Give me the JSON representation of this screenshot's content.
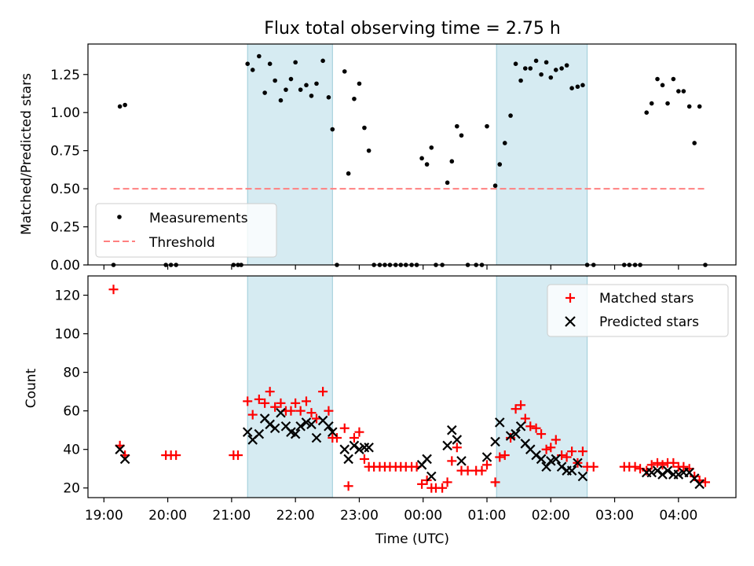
{
  "chart_data": [
    {
      "type": "scatter",
      "title": "Flux total observing time = 2.75 h",
      "xlabel": "",
      "ylabel": "Matched/Predicted stars",
      "xlim": [
        18.75,
        28.9
      ],
      "ylim": [
        0,
        1.45
      ],
      "yticks": [
        0.0,
        0.25,
        0.5,
        0.75,
        1.0,
        1.25
      ],
      "ytick_labels": [
        "0.00",
        "0.25",
        "0.50",
        "0.75",
        "1.00",
        "1.25"
      ],
      "shaded_regions": [
        [
          21.25,
          22.58
        ],
        [
          25.15,
          26.57
        ]
      ],
      "threshold": {
        "name": "Threshold",
        "value": 0.5,
        "x": [
          19.15,
          28.42
        ],
        "color": "#ff8080"
      },
      "legend": {
        "position": "lower-left",
        "entries": [
          "Measurements",
          "Threshold"
        ]
      },
      "series": [
        {
          "name": "Measurements",
          "color": "#000000",
          "x": [
            19.15,
            19.25,
            19.33,
            19.97,
            20.05,
            20.13,
            21.03,
            21.1,
            21.15,
            21.25,
            21.33,
            21.43,
            21.52,
            21.6,
            21.68,
            21.77,
            21.85,
            21.93,
            22.0,
            22.08,
            22.17,
            22.25,
            22.33,
            22.43,
            22.52,
            22.58,
            22.65,
            22.77,
            22.83,
            22.92,
            23.0,
            23.08,
            23.15,
            23.23,
            23.32,
            23.4,
            23.48,
            23.57,
            23.65,
            23.73,
            23.82,
            23.9,
            23.98,
            24.06,
            24.13,
            24.2,
            24.3,
            24.38,
            24.45,
            24.53,
            24.6,
            24.7,
            24.83,
            24.92,
            25.0,
            25.13,
            25.2,
            25.28,
            25.37,
            25.45,
            25.53,
            25.6,
            25.68,
            25.77,
            25.85,
            25.93,
            26.0,
            26.08,
            26.17,
            26.25,
            26.33,
            26.42,
            26.5,
            26.57,
            26.67,
            27.15,
            27.23,
            27.32,
            27.4,
            27.5,
            27.58,
            27.67,
            27.75,
            27.83,
            27.92,
            28.0,
            28.08,
            28.17,
            28.25,
            28.33,
            28.42
          ],
          "y": [
            0.0,
            1.04,
            1.05,
            0.0,
            0.0,
            0.0,
            0.0,
            0.0,
            0.0,
            1.32,
            1.28,
            1.37,
            1.13,
            1.32,
            1.21,
            1.08,
            1.15,
            1.22,
            1.33,
            1.15,
            1.18,
            1.11,
            1.19,
            1.34,
            1.1,
            0.89,
            0.0,
            1.27,
            0.6,
            1.09,
            1.19,
            0.9,
            0.75,
            0.0,
            0.0,
            0.0,
            0.0,
            0.0,
            0.0,
            0.0,
            0.0,
            0.0,
            0.7,
            0.66,
            0.77,
            0.0,
            0.0,
            0.54,
            0.68,
            0.91,
            0.85,
            0.0,
            0.0,
            0.0,
            0.91,
            0.52,
            0.66,
            0.8,
            0.98,
            1.32,
            1.21,
            1.29,
            1.29,
            1.34,
            1.25,
            1.33,
            1.23,
            1.28,
            1.29,
            1.31,
            1.16,
            1.17,
            1.18,
            0.0,
            0.0,
            0.0,
            0.0,
            0.0,
            0.0,
            1.0,
            1.06,
            1.22,
            1.18,
            1.06,
            1.22,
            1.14,
            1.14,
            1.04,
            0.8,
            1.04,
            0.0
          ]
        }
      ]
    },
    {
      "type": "scatter",
      "title": "",
      "xlabel": "Time (UTC)",
      "ylabel": "Count",
      "xlim": [
        18.75,
        28.9
      ],
      "ylim": [
        15,
        130
      ],
      "yticks": [
        20,
        40,
        60,
        80,
        100,
        120
      ],
      "ytick_labels": [
        "20",
        "40",
        "60",
        "80",
        "100",
        "120"
      ],
      "xticks": [
        19,
        20,
        21,
        22,
        23,
        24,
        25,
        26,
        27,
        28
      ],
      "xtick_labels": [
        "19:00",
        "20:00",
        "21:00",
        "22:00",
        "23:00",
        "00:00",
        "01:00",
        "02:00",
        "03:00",
        "04:00"
      ],
      "shaded_regions": [
        [
          21.25,
          22.58
        ],
        [
          25.15,
          26.57
        ]
      ],
      "legend": {
        "position": "top-right",
        "entries": [
          "Matched stars",
          "Predicted stars"
        ]
      },
      "series": [
        {
          "name": "Matched stars",
          "color": "#ff0000",
          "marker": "plus",
          "x": [
            19.15,
            19.25,
            19.33,
            19.97,
            20.05,
            20.13,
            21.03,
            21.1,
            21.25,
            21.33,
            21.43,
            21.52,
            21.6,
            21.68,
            21.77,
            21.85,
            21.93,
            22.0,
            22.08,
            22.17,
            22.25,
            22.33,
            22.43,
            22.52,
            22.58,
            22.65,
            22.77,
            22.83,
            22.92,
            23.0,
            23.08,
            23.15,
            23.23,
            23.32,
            23.4,
            23.48,
            23.57,
            23.65,
            23.73,
            23.82,
            23.9,
            23.98,
            24.06,
            24.13,
            24.2,
            24.3,
            24.38,
            24.45,
            24.53,
            24.6,
            24.7,
            24.83,
            24.92,
            25.0,
            25.13,
            25.2,
            25.28,
            25.37,
            25.45,
            25.53,
            25.6,
            25.68,
            25.77,
            25.85,
            25.93,
            26.0,
            26.08,
            26.17,
            26.25,
            26.33,
            26.42,
            26.5,
            26.57,
            26.67,
            27.15,
            27.23,
            27.32,
            27.4,
            27.5,
            27.58,
            27.67,
            27.75,
            27.83,
            27.92,
            28.0,
            28.08,
            28.17,
            28.25,
            28.33,
            28.42
          ],
          "y": [
            123,
            42,
            37,
            37,
            37,
            37,
            37,
            37,
            65,
            58,
            66,
            64,
            70,
            62,
            64,
            60,
            60,
            64,
            60,
            65,
            59,
            56,
            70,
            60,
            46,
            46,
            51,
            21,
            46,
            49,
            35,
            31,
            31,
            31,
            31,
            31,
            31,
            31,
            31,
            31,
            31,
            22,
            24,
            20,
            20,
            20,
            23,
            34,
            41,
            29,
            29,
            29,
            29,
            32,
            23,
            36,
            37,
            46,
            61,
            63,
            56,
            52,
            51,
            48,
            40,
            41,
            45,
            37,
            36,
            39,
            33,
            39,
            31,
            31,
            31,
            31,
            31,
            30,
            29,
            32,
            33,
            32,
            33,
            33,
            31,
            31,
            30,
            26,
            24,
            23
          ]
        },
        {
          "name": "Predicted stars",
          "color": "#000000",
          "marker": "x",
          "x": [
            19.25,
            19.33,
            21.25,
            21.33,
            21.43,
            21.52,
            21.6,
            21.68,
            21.77,
            21.85,
            21.93,
            22.0,
            22.08,
            22.17,
            22.25,
            22.33,
            22.43,
            22.52,
            22.58,
            22.77,
            22.83,
            22.92,
            23.0,
            23.08,
            23.15,
            23.98,
            24.06,
            24.13,
            24.38,
            24.45,
            24.53,
            24.6,
            25.0,
            25.13,
            25.2,
            25.37,
            25.45,
            25.53,
            25.6,
            25.68,
            25.77,
            25.85,
            25.93,
            26.0,
            26.08,
            26.17,
            26.25,
            26.33,
            26.42,
            26.5,
            27.5,
            27.58,
            27.67,
            27.75,
            27.83,
            27.92,
            28.0,
            28.08,
            28.17,
            28.25,
            28.33
          ],
          "y": [
            40,
            35,
            49,
            45,
            48,
            56,
            53,
            51,
            59,
            52,
            49,
            48,
            52,
            54,
            53,
            46,
            55,
            52,
            49,
            40,
            35,
            42,
            40,
            41,
            41,
            32,
            35,
            26,
            42,
            50,
            45,
            34,
            36,
            44,
            54,
            47,
            48,
            52,
            43,
            40,
            37,
            35,
            31,
            34,
            35,
            31,
            29,
            29,
            33,
            26,
            28,
            28,
            29,
            27,
            29,
            27,
            27,
            28,
            28,
            25,
            22
          ]
        }
      ]
    }
  ]
}
